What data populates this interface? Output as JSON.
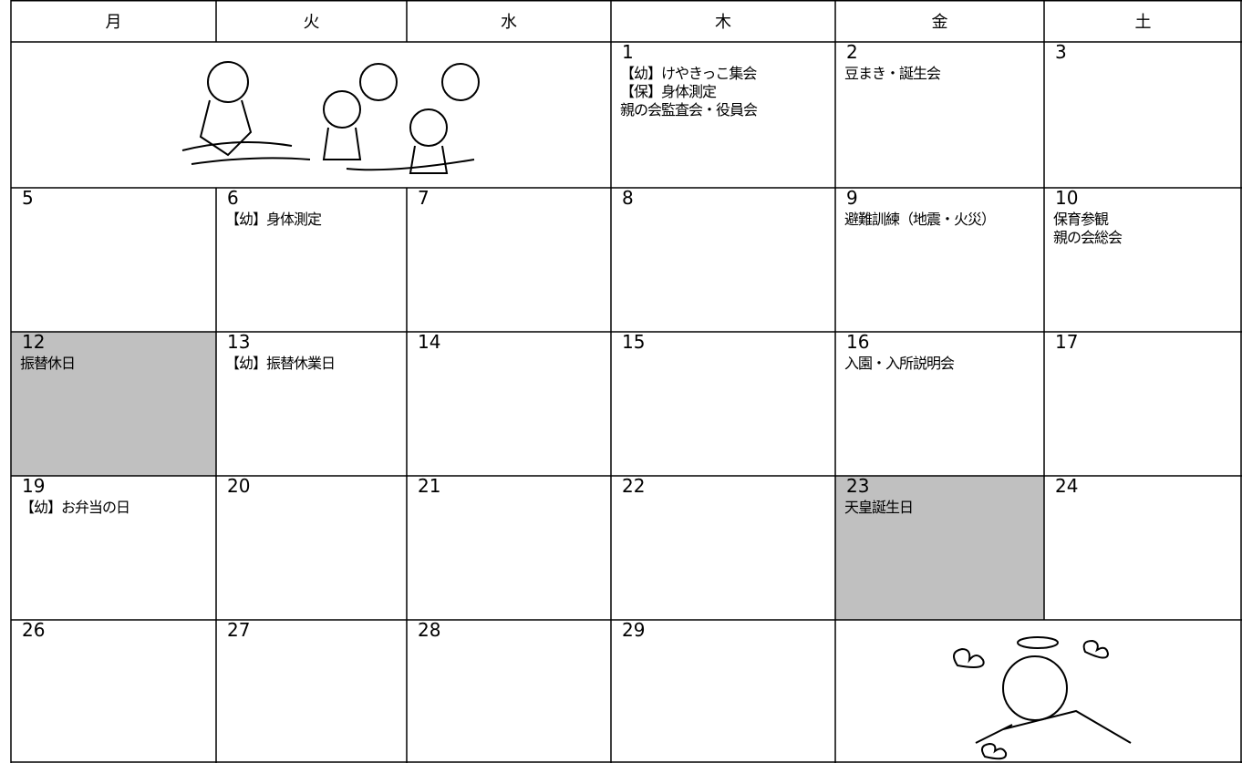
{
  "calendar": {
    "weekdays": [
      "月",
      "火",
      "水",
      "木",
      "金",
      "土"
    ],
    "weeks": [
      [
        null,
        null,
        null,
        {
          "day": 1,
          "events": [
            "【幼】けやきっこ集会",
            "【保】身体測定",
            "親の会監査会・役員会"
          ]
        },
        {
          "day": 2,
          "events": [
            "豆まき・誕生会"
          ]
        },
        {
          "day": 3,
          "events": []
        }
      ],
      [
        {
          "day": 5,
          "events": []
        },
        {
          "day": 6,
          "events": [
            "【幼】身体測定"
          ]
        },
        {
          "day": 7,
          "events": []
        },
        {
          "day": 8,
          "events": []
        },
        {
          "day": 9,
          "events": [
            "避難訓練（地震・火災）"
          ]
        },
        {
          "day": 10,
          "events": [
            "保育参観",
            "親の会総会"
          ]
        }
      ],
      [
        {
          "day": 12,
          "events": [
            "振替休日"
          ],
          "holiday": true
        },
        {
          "day": 13,
          "events": [
            "【幼】振替休業日"
          ]
        },
        {
          "day": 14,
          "events": []
        },
        {
          "day": 15,
          "events": []
        },
        {
          "day": 16,
          "events": [
            "入園・入所説明会"
          ]
        },
        {
          "day": 17,
          "events": []
        }
      ],
      [
        {
          "day": 19,
          "events": [
            "【幼】お弁当の日"
          ]
        },
        {
          "day": 20,
          "events": []
        },
        {
          "day": 21,
          "events": []
        },
        {
          "day": 22,
          "events": []
        },
        {
          "day": 23,
          "events": [
            "天皇誕生日"
          ],
          "holiday": true
        },
        {
          "day": 24,
          "events": []
        }
      ],
      [
        {
          "day": 26,
          "events": []
        },
        {
          "day": 27,
          "events": []
        },
        {
          "day": 28,
          "events": []
        },
        {
          "day": 29,
          "events": []
        },
        null,
        null
      ]
    ],
    "holiday_color": "#c0c0c0"
  }
}
